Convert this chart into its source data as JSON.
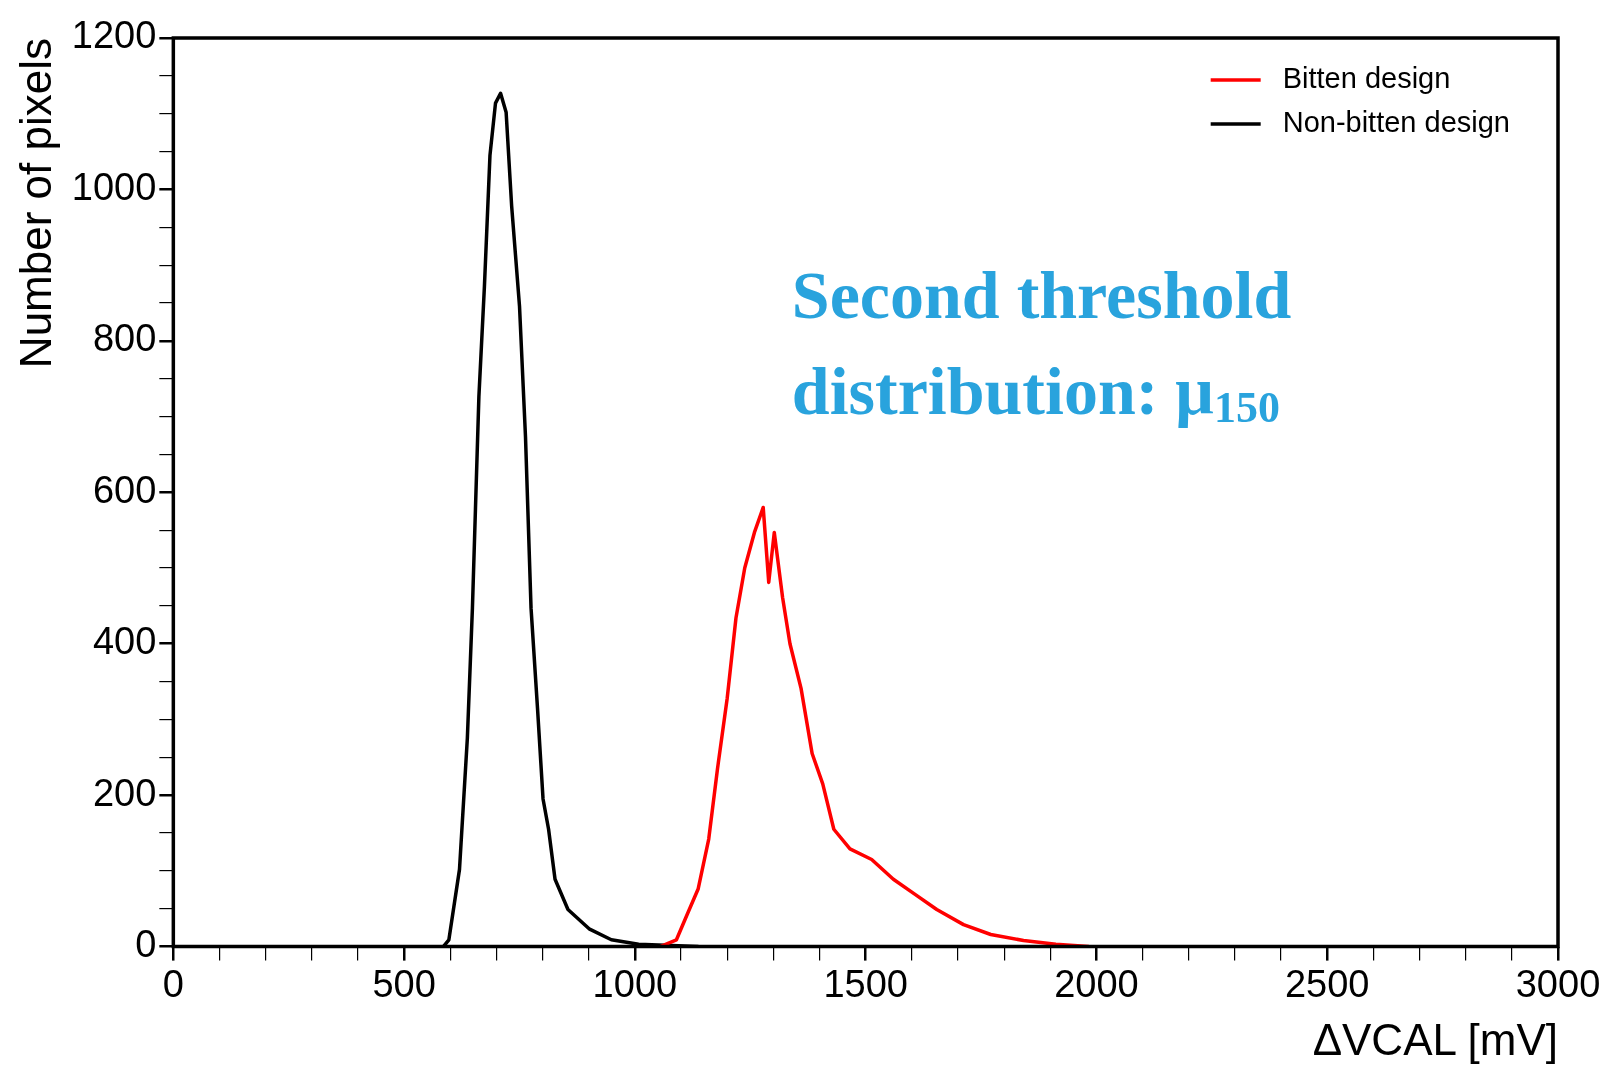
{
  "chart_data": {
    "type": "line",
    "xlabel": "ΔVCAL [mV]",
    "ylabel": "Number of pixels",
    "annotations": [
      "Second threshold distribution: μ$_{150}$"
    ],
    "xlim": [
      0,
      3000
    ],
    "ylim": [
      0,
      1200
    ],
    "xticks": [
      0,
      {
        "value": 100,
        "label": null
      },
      {
        "value": 200,
        "label": null
      },
      {
        "value": 300,
        "label": null
      },
      {
        "value": 400,
        "label": null
      },
      500,
      {
        "value": 600,
        "label": null
      },
      {
        "value": 700,
        "label": null
      },
      {
        "value": 800,
        "label": null
      },
      {
        "value": 900,
        "label": null
      },
      1000,
      {
        "value": 1100,
        "label": null
      },
      {
        "value": 1200,
        "label": null
      },
      {
        "value": 1300,
        "label": null
      },
      {
        "value": 1400,
        "label": null
      },
      1500,
      {
        "value": 1600,
        "label": null
      },
      {
        "value": 1700,
        "label": null
      },
      {
        "value": 1800,
        "label": null
      },
      {
        "value": 1900,
        "label": null
      },
      2000,
      {
        "value": 2100,
        "label": null
      },
      {
        "value": 2200,
        "label": null
      },
      {
        "value": 2300,
        "label": null
      },
      {
        "value": 2400,
        "label": null
      },
      2500,
      {
        "value": 2600,
        "label": null
      },
      {
        "value": 2700,
        "label": null
      },
      {
        "value": 2800,
        "label": null
      },
      {
        "value": 2900,
        "label": null
      },
      3000
    ],
    "yticks": [
      0,
      {
        "value": 50,
        "label": null
      },
      {
        "value": 100,
        "label": null
      },
      {
        "value": 150,
        "label": null
      },
      200,
      {
        "value": 250,
        "label": null
      },
      {
        "value": 300,
        "label": null
      },
      {
        "value": 350,
        "label": null
      },
      400,
      {
        "value": 450,
        "label": null
      },
      {
        "value": 500,
        "label": null
      },
      {
        "value": 550,
        "label": null
      },
      600,
      {
        "value": 650,
        "label": null
      },
      {
        "value": 700,
        "label": null
      },
      {
        "value": 750,
        "label": null
      },
      800,
      {
        "value": 850,
        "label": null
      },
      {
        "value": 900,
        "label": null
      },
      {
        "value": 950,
        "label": null
      },
      1000,
      {
        "value": 1050,
        "label": null
      },
      {
        "value": 1100,
        "label": null
      },
      {
        "value": 1150,
        "label": null
      },
      1200
    ],
    "legend": "top right",
    "grid": false,
    "marker": "none",
    "line_style": "solid",
    "series": [
      {
        "name": "Bitten design",
        "color": "#ff0000",
        "x": [
          1055,
          1090,
          1113,
          1137,
          1160,
          1179,
          1200,
          1219,
          1238,
          1259,
          1278,
          1290,
          1302,
          1320,
          1336,
          1360,
          1384,
          1407,
          1431,
          1466,
          1513,
          1560,
          1607,
          1654,
          1712,
          1771,
          1842,
          1912,
          1983
        ],
        "values": [
          0,
          9,
          42,
          76,
          142,
          235,
          328,
          434,
          500,
          547,
          580,
          481,
          547,
          461,
          400,
          341,
          255,
          215,
          155,
          129,
          115,
          89,
          69,
          49,
          29,
          16,
          8,
          3,
          0
        ]
      },
      {
        "name": "Non-bitten design",
        "color": "#000000",
        "x": [
          585,
          597,
          620,
          637,
          648,
          662,
          674,
          686,
          698,
          709,
          721,
          733,
          750,
          763,
          775,
          789,
          801,
          813,
          827,
          855,
          902,
          949,
          1008,
          1137
        ],
        "values": [
          0,
          9,
          102,
          275,
          447,
          726,
          872,
          1045,
          1114,
          1127,
          1102,
          978,
          846,
          673,
          447,
          315,
          195,
          155,
          89,
          49,
          23,
          9,
          3,
          0
        ]
      }
    ]
  }
}
